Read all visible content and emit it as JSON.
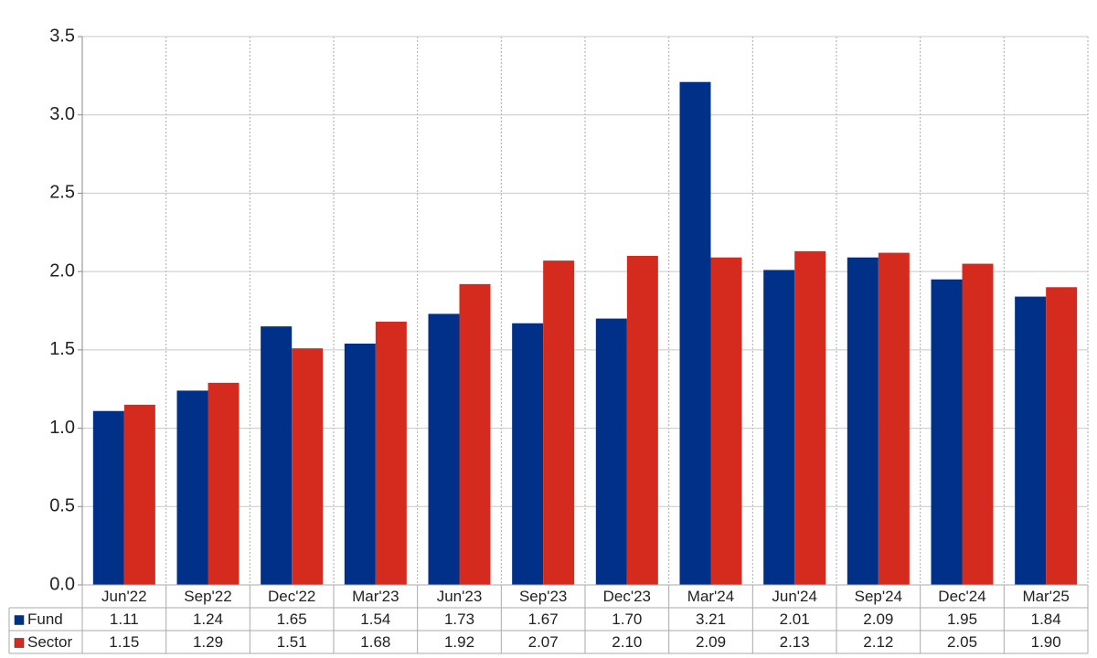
{
  "chart_data": {
    "type": "bar",
    "categories": [
      "Jun'22",
      "Sep'22",
      "Dec'22",
      "Mar'23",
      "Jun'23",
      "Sep'23",
      "Dec'23",
      "Mar'24",
      "Jun'24",
      "Sep'24",
      "Dec'24",
      "Mar'25"
    ],
    "series": [
      {
        "name": "Fund",
        "color": "#003087",
        "values": [
          1.11,
          1.24,
          1.65,
          1.54,
          1.73,
          1.67,
          1.7,
          3.21,
          2.01,
          2.09,
          1.95,
          1.84
        ],
        "value_labels": [
          "1.11",
          "1.24",
          "1.65",
          "1.54",
          "1.73",
          "1.67",
          "1.70",
          "3.21",
          "2.01",
          "2.09",
          "1.95",
          "1.84"
        ]
      },
      {
        "name": "Sector",
        "color": "#d52b1e",
        "values": [
          1.15,
          1.29,
          1.51,
          1.68,
          1.92,
          2.07,
          2.1,
          2.09,
          2.13,
          2.12,
          2.05,
          1.9
        ],
        "value_labels": [
          "1.15",
          "1.29",
          "1.51",
          "1.68",
          "1.92",
          "2.07",
          "2.10",
          "2.09",
          "2.13",
          "2.12",
          "2.05",
          "1.90"
        ]
      }
    ],
    "ylim": [
      0,
      3.5
    ],
    "yticks": [
      {
        "value": 0,
        "label": "0.0"
      },
      0.5,
      {
        "value": 1,
        "label": "1.0"
      },
      1.5,
      {
        "value": 2,
        "label": "2.0"
      },
      2.5,
      {
        "value": 3,
        "label": "3.0"
      },
      3.5
    ],
    "grid": true
  }
}
